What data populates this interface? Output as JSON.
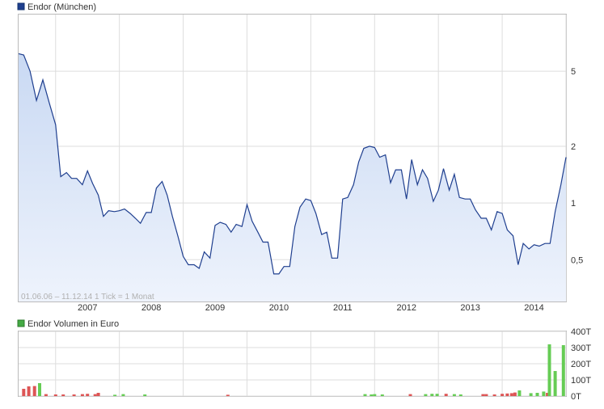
{
  "chart_data": [
    {
      "type": "area",
      "legend": "Endor (München)",
      "note": "01.06.06 – 11.12.14   1 Tick = 1 Monat",
      "y_scale": "log",
      "ylim": [
        0.3,
        10
      ],
      "y_ticks": [
        {
          "v": 0.5,
          "label": "0,5"
        },
        {
          "v": 1,
          "label": "1"
        },
        {
          "v": 2,
          "label": "2"
        },
        {
          "v": 5,
          "label": "5"
        }
      ],
      "x_ticks": [
        "2007",
        "2008",
        "2009",
        "2010",
        "2011",
        "2012",
        "2013",
        "2014"
      ],
      "series": [
        {
          "values": [
            [
              2006.42,
              6.2
            ],
            [
              2006.5,
              6.1
            ],
            [
              2006.6,
              5.0
            ],
            [
              2006.7,
              3.5
            ],
            [
              2006.8,
              4.5
            ],
            [
              2006.9,
              3.4
            ],
            [
              2007.0,
              2.6
            ],
            [
              2007.08,
              1.38
            ],
            [
              2007.17,
              1.45
            ],
            [
              2007.25,
              1.35
            ],
            [
              2007.33,
              1.35
            ],
            [
              2007.42,
              1.25
            ],
            [
              2007.5,
              1.48
            ],
            [
              2007.58,
              1.27
            ],
            [
              2007.67,
              1.1
            ],
            [
              2007.75,
              0.85
            ],
            [
              2007.83,
              0.91
            ],
            [
              2007.92,
              0.9
            ],
            [
              2008.0,
              0.91
            ],
            [
              2008.08,
              0.93
            ],
            [
              2008.17,
              0.88
            ],
            [
              2008.25,
              0.83
            ],
            [
              2008.33,
              0.78
            ],
            [
              2008.42,
              0.89
            ],
            [
              2008.5,
              0.89
            ],
            [
              2008.58,
              1.2
            ],
            [
              2008.67,
              1.3
            ],
            [
              2008.75,
              1.1
            ],
            [
              2008.83,
              0.85
            ],
            [
              2008.92,
              0.66
            ],
            [
              2009.0,
              0.52
            ],
            [
              2009.08,
              0.47
            ],
            [
              2009.17,
              0.47
            ],
            [
              2009.25,
              0.45
            ],
            [
              2009.33,
              0.55
            ],
            [
              2009.42,
              0.51
            ],
            [
              2009.5,
              0.76
            ],
            [
              2009.58,
              0.79
            ],
            [
              2009.67,
              0.77
            ],
            [
              2009.75,
              0.7
            ],
            [
              2009.83,
              0.77
            ],
            [
              2009.92,
              0.75
            ],
            [
              2010.0,
              0.98
            ],
            [
              2010.08,
              0.8
            ],
            [
              2010.17,
              0.7
            ],
            [
              2010.25,
              0.62
            ],
            [
              2010.33,
              0.62
            ],
            [
              2010.42,
              0.42
            ],
            [
              2010.5,
              0.42
            ],
            [
              2010.58,
              0.46
            ],
            [
              2010.67,
              0.46
            ],
            [
              2010.75,
              0.75
            ],
            [
              2010.83,
              0.95
            ],
            [
              2010.92,
              1.05
            ],
            [
              2011.0,
              1.03
            ],
            [
              2011.08,
              0.88
            ],
            [
              2011.17,
              0.68
            ],
            [
              2011.25,
              0.7
            ],
            [
              2011.33,
              0.51
            ],
            [
              2011.42,
              0.51
            ],
            [
              2011.5,
              1.05
            ],
            [
              2011.58,
              1.07
            ],
            [
              2011.67,
              1.25
            ],
            [
              2011.75,
              1.65
            ],
            [
              2011.83,
              1.95
            ],
            [
              2011.92,
              2.0
            ],
            [
              2012.0,
              1.97
            ],
            [
              2012.08,
              1.75
            ],
            [
              2012.17,
              1.8
            ],
            [
              2012.25,
              1.28
            ],
            [
              2012.33,
              1.5
            ],
            [
              2012.42,
              1.5
            ],
            [
              2012.5,
              1.05
            ],
            [
              2012.58,
              1.7
            ],
            [
              2012.67,
              1.25
            ],
            [
              2012.75,
              1.5
            ],
            [
              2012.83,
              1.35
            ],
            [
              2012.92,
              1.02
            ],
            [
              2013.0,
              1.17
            ],
            [
              2013.08,
              1.52
            ],
            [
              2013.17,
              1.17
            ],
            [
              2013.25,
              1.42
            ],
            [
              2013.33,
              1.07
            ],
            [
              2013.42,
              1.05
            ],
            [
              2013.5,
              1.05
            ],
            [
              2013.58,
              0.92
            ],
            [
              2013.67,
              0.83
            ],
            [
              2013.75,
              0.83
            ],
            [
              2013.83,
              0.72
            ],
            [
              2013.92,
              0.9
            ],
            [
              2014.0,
              0.88
            ],
            [
              2014.08,
              0.72
            ],
            [
              2014.17,
              0.67
            ],
            [
              2014.25,
              0.47
            ],
            [
              2014.33,
              0.61
            ],
            [
              2014.42,
              0.57
            ],
            [
              2014.5,
              0.6
            ],
            [
              2014.58,
              0.59
            ],
            [
              2014.67,
              0.61
            ],
            [
              2014.75,
              0.61
            ],
            [
              2014.83,
              0.9
            ],
            [
              2014.92,
              1.25
            ],
            [
              2015.0,
              1.75
            ]
          ]
        }
      ]
    },
    {
      "type": "bar",
      "legend": "Endor Volumen in Euro",
      "ylim": [
        0,
        400
      ],
      "y_ticks": [
        {
          "v": 0,
          "label": "0T"
        },
        {
          "v": 100,
          "label": "100T"
        },
        {
          "v": 200,
          "label": "200T"
        },
        {
          "v": 300,
          "label": "300T"
        },
        {
          "v": 400,
          "label": "400T"
        }
      ],
      "colors": {
        "up": "#66cc55",
        "down": "#dd5555"
      },
      "series": [
        {
          "values": [
            [
              2006.5,
              45,
              "down"
            ],
            [
              2006.58,
              60,
              "down"
            ],
            [
              2006.67,
              62,
              "down"
            ],
            [
              2006.75,
              80,
              "up"
            ],
            [
              2006.85,
              12,
              "down"
            ],
            [
              2007.0,
              10,
              "down"
            ],
            [
              2007.12,
              10,
              "down"
            ],
            [
              2007.29,
              10,
              "down"
            ],
            [
              2007.42,
              12,
              "down"
            ],
            [
              2007.5,
              14,
              "down"
            ],
            [
              2007.62,
              12,
              "down"
            ],
            [
              2007.67,
              20,
              "down"
            ],
            [
              2007.93,
              8,
              "up"
            ],
            [
              2008.06,
              12,
              "up"
            ],
            [
              2008.4,
              10,
              "up"
            ],
            [
              2009.7,
              8,
              "down"
            ],
            [
              2011.85,
              12,
              "up"
            ],
            [
              2011.95,
              10,
              "up"
            ],
            [
              2012.0,
              12,
              "up"
            ],
            [
              2012.12,
              10,
              "up"
            ],
            [
              2012.56,
              12,
              "down"
            ],
            [
              2012.8,
              12,
              "up"
            ],
            [
              2012.9,
              14,
              "up"
            ],
            [
              2012.98,
              14,
              "up"
            ],
            [
              2013.12,
              14,
              "down"
            ],
            [
              2013.25,
              12,
              "up"
            ],
            [
              2013.35,
              10,
              "up"
            ],
            [
              2013.7,
              12,
              "down"
            ],
            [
              2013.75,
              12,
              "down"
            ],
            [
              2013.88,
              10,
              "down"
            ],
            [
              2014.0,
              14,
              "down"
            ],
            [
              2014.08,
              16,
              "down"
            ],
            [
              2014.15,
              18,
              "down"
            ],
            [
              2014.2,
              22,
              "down"
            ],
            [
              2014.27,
              35,
              "up"
            ],
            [
              2014.45,
              18,
              "up"
            ],
            [
              2014.55,
              20,
              "up"
            ],
            [
              2014.65,
              28,
              "up"
            ],
            [
              2014.71,
              20,
              "down"
            ],
            [
              2014.74,
              320,
              "up"
            ],
            [
              2014.83,
              155,
              "up"
            ],
            [
              2014.96,
              315,
              "up"
            ]
          ]
        }
      ]
    }
  ],
  "colors": {
    "line": "#1f3f8f",
    "area_top": "#c9d9f3",
    "area_bottom": "#eef3fc",
    "grid": "#dddddd",
    "legend_marker_1": "#1f3f8f",
    "legend_marker_2": "#44aa44"
  }
}
